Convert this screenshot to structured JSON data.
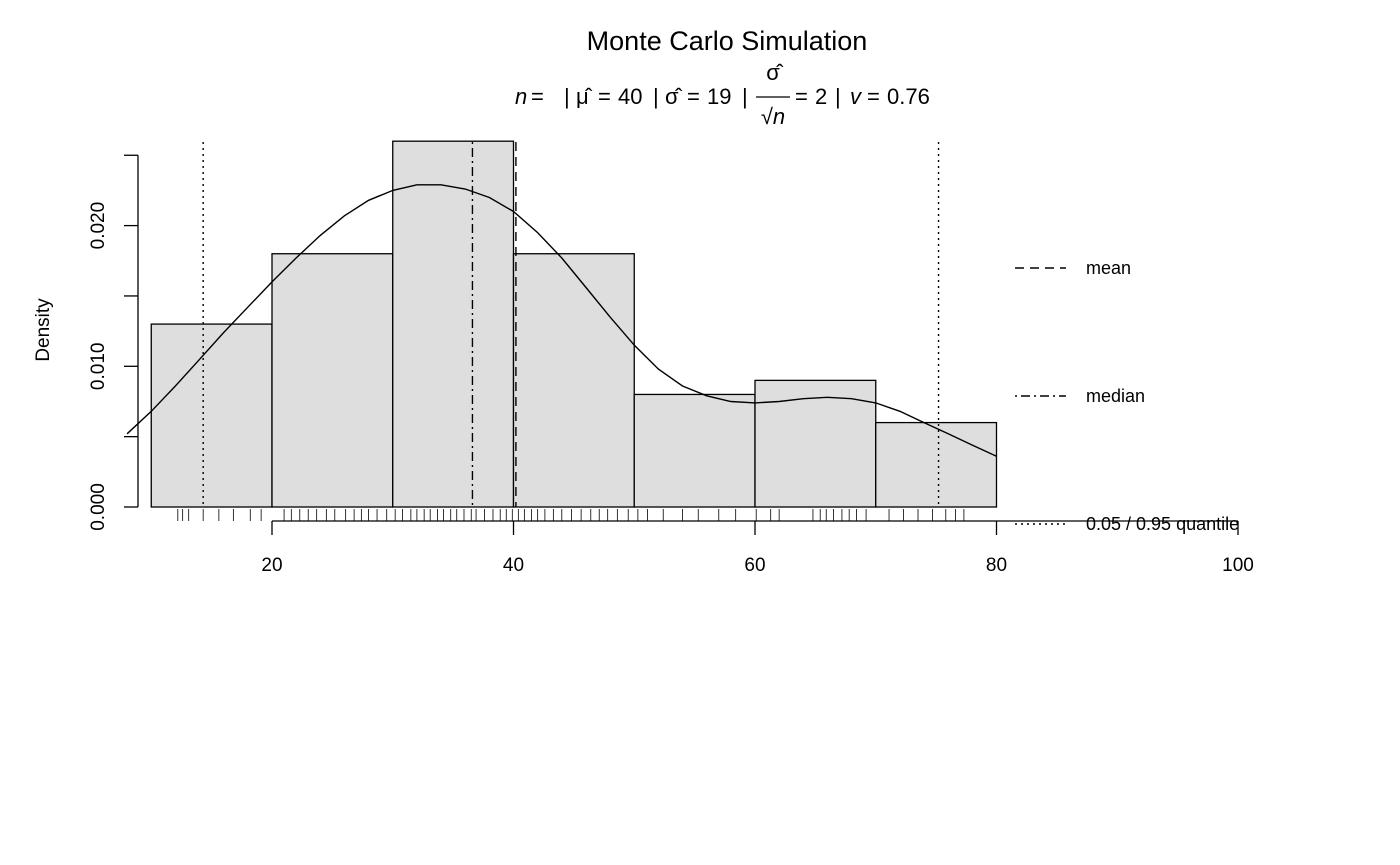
{
  "chart_data": {
    "type": "bar",
    "title": "Monte Carlo Simulation",
    "subtitle": {
      "n_label": "n",
      "n_value": "",
      "mu_label": "μ̂",
      "mu_value": "40",
      "sigma_label": "σ̂",
      "sigma_value": "19",
      "se_numerator": "σ̂",
      "se_denominator": "√n",
      "se_value": "2",
      "v_label": "v",
      "v_value": "0.76",
      "sep": "|",
      "eq": "="
    },
    "xlabel": "",
    "ylabel": "Density",
    "xlim": [
      8,
      102
    ],
    "ylim": [
      0,
      0.026
    ],
    "x_ticks": [
      20,
      40,
      60,
      80,
      100
    ],
    "x_tick_labels": [
      "20",
      "40",
      "60",
      "80",
      "100"
    ],
    "y_ticks": [
      0,
      0.005,
      0.01,
      0.015,
      0.02,
      0.025
    ],
    "y_tick_labels": [
      "0.000",
      "",
      "0.010",
      "",
      "0.020",
      ""
    ],
    "bins": [
      {
        "x0": 10,
        "x1": 20,
        "density": 0.013
      },
      {
        "x0": 20,
        "x1": 30,
        "density": 0.018
      },
      {
        "x0": 30,
        "x1": 40,
        "density": 0.026
      },
      {
        "x0": 40,
        "x1": 50,
        "density": 0.018
      },
      {
        "x0": 50,
        "x1": 60,
        "density": 0.008
      },
      {
        "x0": 60,
        "x1": 70,
        "density": 0.009
      },
      {
        "x0": 70,
        "x1": 80,
        "density": 0.006
      }
    ],
    "density_curve": {
      "x": [
        8,
        10,
        12,
        14,
        16,
        18,
        20,
        22,
        24,
        26,
        28,
        30,
        32,
        34,
        36,
        38,
        40,
        42,
        44,
        46,
        48,
        50,
        52,
        54,
        56,
        58,
        60,
        62,
        64,
        66,
        68,
        70,
        72,
        74,
        76,
        78,
        80
      ],
      "y": [
        0.0052,
        0.0068,
        0.0086,
        0.0105,
        0.0124,
        0.0142,
        0.016,
        0.0177,
        0.0193,
        0.0207,
        0.0218,
        0.0225,
        0.0229,
        0.0229,
        0.0226,
        0.022,
        0.021,
        0.0195,
        0.0177,
        0.0156,
        0.0135,
        0.0115,
        0.0098,
        0.0086,
        0.0079,
        0.0075,
        0.0074,
        0.0075,
        0.0077,
        0.0078,
        0.0077,
        0.0074,
        0.0068,
        0.006,
        0.0052,
        0.0044,
        0.0036
      ]
    },
    "rug": [
      12.2,
      12.6,
      13.1,
      14.3,
      15.6,
      16.8,
      18.2,
      19.1,
      21.0,
      21.6,
      22.3,
      23.0,
      23.7,
      24.5,
      25.2,
      26.1,
      26.8,
      27.4,
      28.0,
      28.7,
      29.5,
      30.2,
      30.8,
      31.5,
      32.0,
      32.6,
      33.1,
      33.7,
      34.2,
      34.8,
      35.3,
      35.9,
      36.5,
      36.9,
      37.6,
      38.3,
      38.9,
      39.4,
      39.9,
      40.4,
      40.9,
      41.5,
      42.0,
      42.6,
      43.3,
      44.0,
      44.8,
      45.6,
      46.4,
      47.1,
      47.8,
      48.6,
      49.5,
      50.3,
      51.1,
      52.4,
      54.0,
      55.3,
      57.0,
      58.4,
      60.1,
      61.3,
      62.0,
      64.8,
      65.4,
      65.9,
      66.5,
      67.2,
      67.8,
      68.4,
      69.2,
      71.1,
      72.3,
      73.5,
      74.7,
      75.8,
      76.6,
      77.3
    ],
    "reference_lines": [
      {
        "name": "q05",
        "x": 14.3,
        "style": "dotted"
      },
      {
        "name": "median",
        "x": 36.6,
        "style": "dotdash"
      },
      {
        "name": "mean",
        "x": 40.2,
        "style": "dashed"
      },
      {
        "name": "q95",
        "x": 75.2,
        "style": "dotted"
      }
    ],
    "legend": {
      "placement": "right",
      "entries": [
        {
          "label": "mean",
          "style": "dashed"
        },
        {
          "label": "median",
          "style": "dotdash"
        },
        {
          "label": "0.05 / 0.95 quantile",
          "style": "dotted"
        }
      ]
    },
    "colors": {
      "bar_fill": "#dedede",
      "line": "#000000",
      "background": "#ffffff"
    },
    "grid": false
  }
}
